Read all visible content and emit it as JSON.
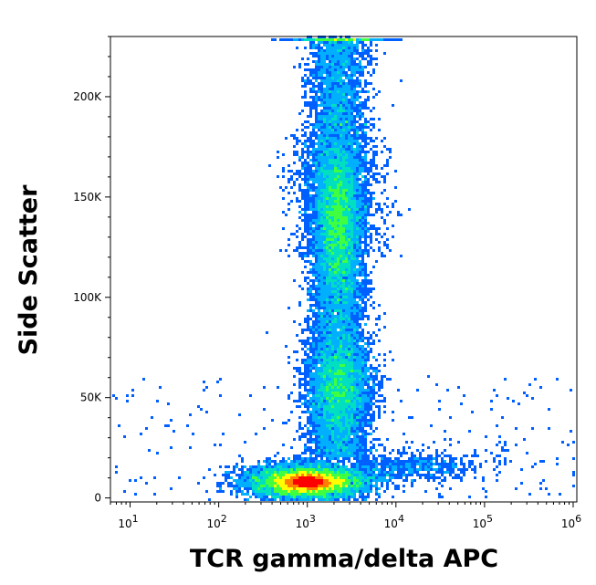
{
  "chart_data": {
    "type": "scatter",
    "style": "density-dot-plot",
    "xlabel": "TCR gamma/delta APC",
    "ylabel": "Side Scatter",
    "x_scale": "log",
    "y_scale": "linear",
    "xlim": [
      6,
      1100000
    ],
    "ylim": [
      -2000,
      230000
    ],
    "grid": false,
    "legend": "none",
    "x_ticks": [
      {
        "value": 10,
        "base": "10",
        "exp": "1"
      },
      {
        "value": 100,
        "base": "10",
        "exp": "2"
      },
      {
        "value": 1000,
        "base": "10",
        "exp": "3"
      },
      {
        "value": 10000,
        "base": "10",
        "exp": "4"
      },
      {
        "value": 100000,
        "base": "10",
        "exp": "5"
      },
      {
        "value": 1000000,
        "base": "10",
        "exp": "6"
      }
    ],
    "y_ticks": [
      {
        "value": 0,
        "label": "0"
      },
      {
        "value": 50000,
        "label": "50K"
      },
      {
        "value": 100000,
        "label": "100K"
      },
      {
        "value": 150000,
        "label": "150K"
      },
      {
        "value": 200000,
        "label": "200K"
      }
    ],
    "density_colors": [
      "#0000ff",
      "#0060ff",
      "#00b0ff",
      "#00e0c0",
      "#40ff40",
      "#ffff00",
      "#ff8000",
      "#ff0000"
    ],
    "populations": [
      {
        "center_x": 1000,
        "center_y": 8000,
        "relative_density": 1.0
      },
      {
        "center_x": 2200,
        "center_y": 140000,
        "relative_density": 0.45
      },
      {
        "center_x": 2300,
        "center_y": 55000,
        "relative_density": 0.25
      }
    ]
  }
}
